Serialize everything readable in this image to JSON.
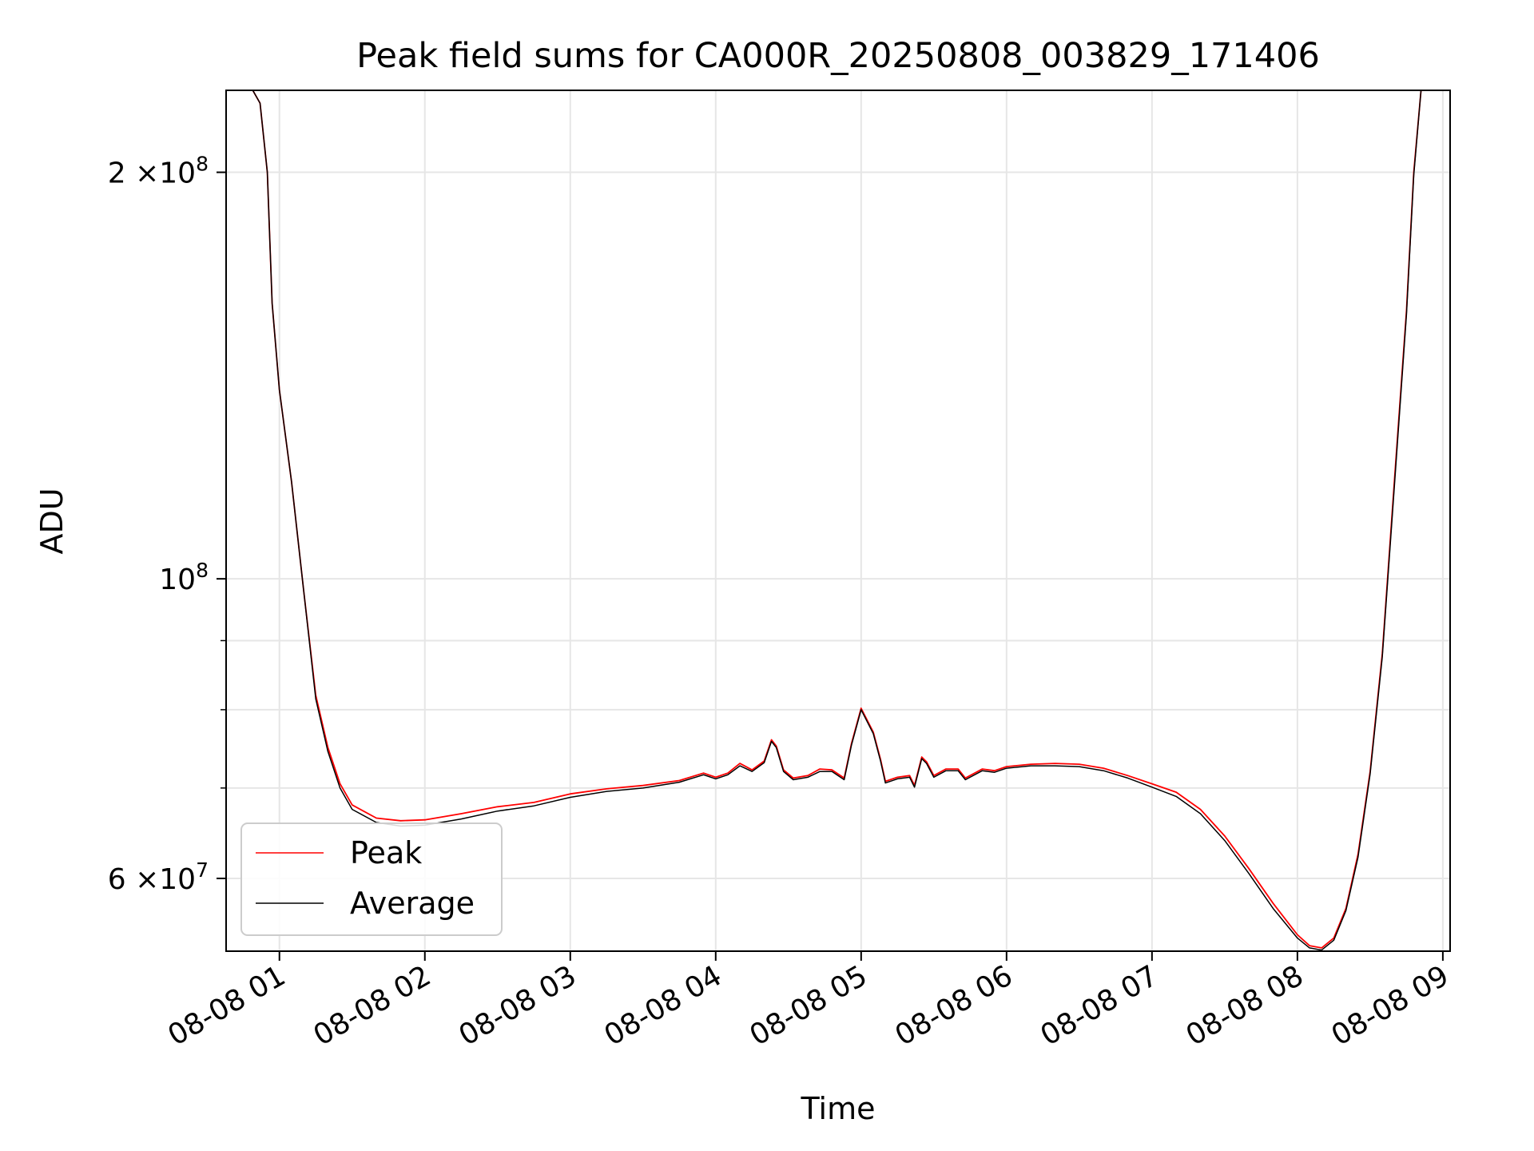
{
  "chart_data": {
    "type": "line",
    "title": "Peak field sums for CA000R_20250808_003829_171406",
    "xlabel": "Time",
    "ylabel": "ADU",
    "x_scale": "time",
    "y_scale": "log",
    "xlim": [
      "2025-08-08 00:38",
      "2025-08-08 09:03"
    ],
    "ylim": [
      53000000,
      230000000
    ],
    "grid": true,
    "legend_position": "lower-left",
    "x_ticks": [
      {
        "value": "2025-08-08 01:00",
        "label": "08-08 01"
      },
      {
        "value": "2025-08-08 02:00",
        "label": "08-08 02"
      },
      {
        "value": "2025-08-08 03:00",
        "label": "08-08 03"
      },
      {
        "value": "2025-08-08 04:00",
        "label": "08-08 04"
      },
      {
        "value": "2025-08-08 05:00",
        "label": "08-08 05"
      },
      {
        "value": "2025-08-08 06:00",
        "label": "08-08 06"
      },
      {
        "value": "2025-08-08 07:00",
        "label": "08-08 07"
      },
      {
        "value": "2025-08-08 08:00",
        "label": "08-08 08"
      },
      {
        "value": "2025-08-08 09:00",
        "label": "08-08 09"
      }
    ],
    "y_major_ticks": [
      {
        "value": 60000000,
        "mantissa": "6",
        "label": "×10",
        "exp": "7"
      },
      {
        "value": 100000000,
        "mantissa": "",
        "label": "10",
        "exp": "8"
      },
      {
        "value": 200000000,
        "mantissa": "2",
        "label": "×10",
        "exp": "8"
      }
    ],
    "y_minor_ticks": [
      70000000,
      80000000,
      90000000
    ],
    "series": [
      {
        "name": "Peak",
        "color": "#ff0000",
        "points": [
          [
            "2025-08-08 00:38",
            230000000
          ],
          [
            "2025-08-08 00:49",
            230000000
          ],
          [
            "2025-08-08 00:52",
            225000000
          ],
          [
            "2025-08-08 00:55",
            200000000
          ],
          [
            "2025-08-08 00:57",
            160000000
          ],
          [
            "2025-08-08 01:00",
            138000000
          ],
          [
            "2025-08-08 01:05",
            118000000
          ],
          [
            "2025-08-08 01:10",
            98000000
          ],
          [
            "2025-08-08 01:15",
            82000000
          ],
          [
            "2025-08-08 01:20",
            75000000
          ],
          [
            "2025-08-08 01:25",
            70500000
          ],
          [
            "2025-08-08 01:30",
            68000000
          ],
          [
            "2025-08-08 01:40",
            66500000
          ],
          [
            "2025-08-08 01:50",
            66200000
          ],
          [
            "2025-08-08 02:00",
            66300000
          ],
          [
            "2025-08-08 02:15",
            67000000
          ],
          [
            "2025-08-08 02:30",
            67800000
          ],
          [
            "2025-08-08 02:45",
            68300000
          ],
          [
            "2025-08-08 03:00",
            69300000
          ],
          [
            "2025-08-08 03:15",
            69900000
          ],
          [
            "2025-08-08 03:30",
            70300000
          ],
          [
            "2025-08-08 03:45",
            70900000
          ],
          [
            "2025-08-08 03:55",
            71800000
          ],
          [
            "2025-08-08 04:00",
            71300000
          ],
          [
            "2025-08-08 04:05",
            71800000
          ],
          [
            "2025-08-08 04:10",
            73000000
          ],
          [
            "2025-08-08 04:15",
            72200000
          ],
          [
            "2025-08-08 04:20",
            73300000
          ],
          [
            "2025-08-08 04:23",
            76000000
          ],
          [
            "2025-08-08 04:25",
            75200000
          ],
          [
            "2025-08-08 04:28",
            72200000
          ],
          [
            "2025-08-08 04:32",
            71200000
          ],
          [
            "2025-08-08 04:38",
            71500000
          ],
          [
            "2025-08-08 04:43",
            72300000
          ],
          [
            "2025-08-08 04:48",
            72200000
          ],
          [
            "2025-08-08 04:53",
            71200000
          ],
          [
            "2025-08-08 04:56",
            75500000
          ],
          [
            "2025-08-08 05:00",
            80200000
          ],
          [
            "2025-08-08 05:05",
            77000000
          ],
          [
            "2025-08-08 05:08",
            73500000
          ],
          [
            "2025-08-08 05:10",
            70800000
          ],
          [
            "2025-08-08 05:15",
            71300000
          ],
          [
            "2025-08-08 05:20",
            71500000
          ],
          [
            "2025-08-08 05:22",
            70300000
          ],
          [
            "2025-08-08 05:25",
            73800000
          ],
          [
            "2025-08-08 05:27",
            73200000
          ],
          [
            "2025-08-08 05:30",
            71500000
          ],
          [
            "2025-08-08 05:35",
            72300000
          ],
          [
            "2025-08-08 05:40",
            72300000
          ],
          [
            "2025-08-08 05:43",
            71200000
          ],
          [
            "2025-08-08 05:50",
            72300000
          ],
          [
            "2025-08-08 05:55",
            72100000
          ],
          [
            "2025-08-08 06:00",
            72600000
          ],
          [
            "2025-08-08 06:10",
            72900000
          ],
          [
            "2025-08-08 06:20",
            73000000
          ],
          [
            "2025-08-08 06:30",
            72900000
          ],
          [
            "2025-08-08 06:40",
            72400000
          ],
          [
            "2025-08-08 06:50",
            71500000
          ],
          [
            "2025-08-08 07:00",
            70500000
          ],
          [
            "2025-08-08 07:10",
            69500000
          ],
          [
            "2025-08-08 07:20",
            67500000
          ],
          [
            "2025-08-08 07:30",
            64500000
          ],
          [
            "2025-08-08 07:40",
            61000000
          ],
          [
            "2025-08-08 07:50",
            57500000
          ],
          [
            "2025-08-08 08:00",
            54500000
          ],
          [
            "2025-08-08 08:05",
            53500000
          ],
          [
            "2025-08-08 08:10",
            53300000
          ],
          [
            "2025-08-08 08:15",
            54200000
          ],
          [
            "2025-08-08 08:20",
            57000000
          ],
          [
            "2025-08-08 08:25",
            62500000
          ],
          [
            "2025-08-08 08:30",
            72000000
          ],
          [
            "2025-08-08 08:35",
            88000000
          ],
          [
            "2025-08-08 08:40",
            118000000
          ],
          [
            "2025-08-08 08:45",
            158000000
          ],
          [
            "2025-08-08 08:48",
            200000000
          ],
          [
            "2025-08-08 08:51",
            230000000
          ],
          [
            "2025-08-08 09:03",
            230000000
          ]
        ]
      },
      {
        "name": "Average",
        "color": "#000000",
        "points": [
          [
            "2025-08-08 00:38",
            230000000
          ],
          [
            "2025-08-08 00:49",
            230000000
          ],
          [
            "2025-08-08 00:52",
            225000000
          ],
          [
            "2025-08-08 00:55",
            200000000
          ],
          [
            "2025-08-08 00:57",
            160000000
          ],
          [
            "2025-08-08 01:00",
            138000000
          ],
          [
            "2025-08-08 01:05",
            118000000
          ],
          [
            "2025-08-08 01:10",
            98000000
          ],
          [
            "2025-08-08 01:15",
            81500000
          ],
          [
            "2025-08-08 01:20",
            74500000
          ],
          [
            "2025-08-08 01:25",
            70000000
          ],
          [
            "2025-08-08 01:30",
            67500000
          ],
          [
            "2025-08-08 01:40",
            66000000
          ],
          [
            "2025-08-08 01:50",
            65600000
          ],
          [
            "2025-08-08 02:00",
            65700000
          ],
          [
            "2025-08-08 02:15",
            66400000
          ],
          [
            "2025-08-08 02:30",
            67300000
          ],
          [
            "2025-08-08 02:45",
            67900000
          ],
          [
            "2025-08-08 03:00",
            68900000
          ],
          [
            "2025-08-08 03:15",
            69600000
          ],
          [
            "2025-08-08 03:30",
            70000000
          ],
          [
            "2025-08-08 03:45",
            70700000
          ],
          [
            "2025-08-08 03:55",
            71600000
          ],
          [
            "2025-08-08 04:00",
            71100000
          ],
          [
            "2025-08-08 04:05",
            71600000
          ],
          [
            "2025-08-08 04:10",
            72700000
          ],
          [
            "2025-08-08 04:15",
            72000000
          ],
          [
            "2025-08-08 04:20",
            73100000
          ],
          [
            "2025-08-08 04:23",
            75800000
          ],
          [
            "2025-08-08 04:25",
            75000000
          ],
          [
            "2025-08-08 04:28",
            72000000
          ],
          [
            "2025-08-08 04:32",
            71000000
          ],
          [
            "2025-08-08 04:38",
            71300000
          ],
          [
            "2025-08-08 04:43",
            72000000
          ],
          [
            "2025-08-08 04:48",
            72000000
          ],
          [
            "2025-08-08 04:53",
            71000000
          ],
          [
            "2025-08-08 04:56",
            75300000
          ],
          [
            "2025-08-08 05:00",
            80000000
          ],
          [
            "2025-08-08 05:05",
            76800000
          ],
          [
            "2025-08-08 05:08",
            73300000
          ],
          [
            "2025-08-08 05:10",
            70600000
          ],
          [
            "2025-08-08 05:15",
            71100000
          ],
          [
            "2025-08-08 05:20",
            71300000
          ],
          [
            "2025-08-08 05:22",
            70100000
          ],
          [
            "2025-08-08 05:25",
            73600000
          ],
          [
            "2025-08-08 05:27",
            73000000
          ],
          [
            "2025-08-08 05:30",
            71300000
          ],
          [
            "2025-08-08 05:35",
            72100000
          ],
          [
            "2025-08-08 05:40",
            72100000
          ],
          [
            "2025-08-08 05:43",
            71000000
          ],
          [
            "2025-08-08 05:50",
            72100000
          ],
          [
            "2025-08-08 05:55",
            71900000
          ],
          [
            "2025-08-08 06:00",
            72400000
          ],
          [
            "2025-08-08 06:10",
            72700000
          ],
          [
            "2025-08-08 06:20",
            72700000
          ],
          [
            "2025-08-08 06:30",
            72600000
          ],
          [
            "2025-08-08 06:40",
            72100000
          ],
          [
            "2025-08-08 06:50",
            71200000
          ],
          [
            "2025-08-08 07:00",
            70100000
          ],
          [
            "2025-08-08 07:10",
            69000000
          ],
          [
            "2025-08-08 07:20",
            67000000
          ],
          [
            "2025-08-08 07:30",
            64000000
          ],
          [
            "2025-08-08 07:40",
            60500000
          ],
          [
            "2025-08-08 07:50",
            57000000
          ],
          [
            "2025-08-08 08:00",
            54200000
          ],
          [
            "2025-08-08 08:05",
            53300000
          ],
          [
            "2025-08-08 08:10",
            53100000
          ],
          [
            "2025-08-08 08:15",
            54000000
          ],
          [
            "2025-08-08 08:20",
            56800000
          ],
          [
            "2025-08-08 08:25",
            62200000
          ],
          [
            "2025-08-08 08:30",
            71700000
          ],
          [
            "2025-08-08 08:35",
            87500000
          ],
          [
            "2025-08-08 08:40",
            117000000
          ],
          [
            "2025-08-08 08:45",
            157000000
          ],
          [
            "2025-08-08 08:48",
            199000000
          ],
          [
            "2025-08-08 08:51",
            230000000
          ],
          [
            "2025-08-08 09:03",
            230000000
          ]
        ]
      }
    ]
  }
}
